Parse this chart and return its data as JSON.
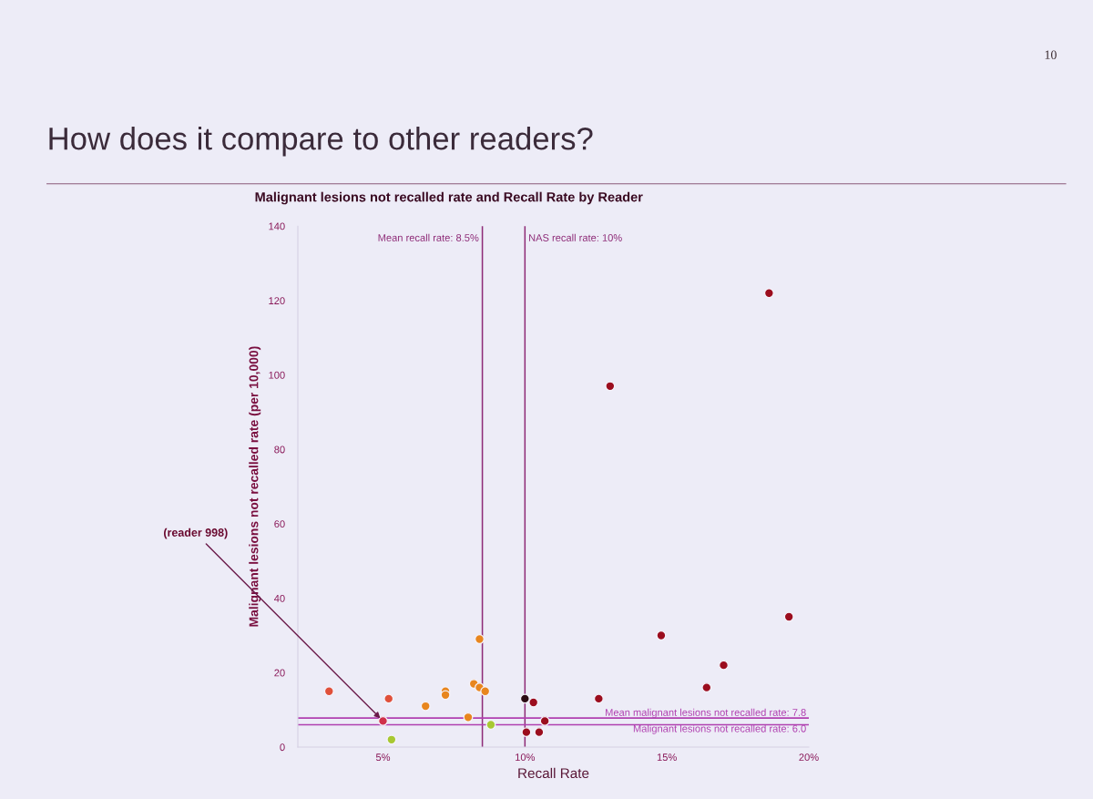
{
  "chart_data": {
    "type": "scatter",
    "title": "How does it compare to other readers?",
    "subtitle": "Malignant lesions not recalled rate and Recall Rate by Reader",
    "xlabel": "Recall Rate",
    "ylabel": "Malignant lesions not recalled rate (per 10,000)",
    "xlim": [
      2,
      20
    ],
    "xticks": [
      {
        "value": 5,
        "label": "5%"
      },
      {
        "value": 10,
        "label": "10%"
      },
      {
        "value": 15,
        "label": "15%"
      },
      {
        "value": 20,
        "label": "20%"
      }
    ],
    "ylim": [
      0,
      140
    ],
    "yticks": [
      0,
      20,
      40,
      60,
      80,
      100,
      120,
      140
    ],
    "marker": "circle",
    "series": [
      {
        "x": [
          3.1,
          5.2,
          5.0,
          5.3,
          6.5,
          7.2,
          7.2,
          8.0,
          8.4,
          8.2,
          8.4,
          8.6,
          8.8,
          10.0,
          10.3,
          10.05,
          10.5,
          10.7,
          12.6,
          13.0,
          14.8,
          16.4,
          17.0,
          18.6,
          19.3
        ],
        "values": [
          15,
          13,
          7,
          2,
          11,
          15,
          14,
          8,
          29,
          17,
          16,
          15,
          6,
          13,
          12,
          4,
          4,
          7,
          13,
          97,
          30,
          16,
          22,
          122,
          35
        ],
        "colors": [
          "#e0503a",
          "#e0503a",
          "#d0304a",
          "#a8c832",
          "#e8861e",
          "#e8861e",
          "#e8861e",
          "#e8861e",
          "#e8861e",
          "#e8861e",
          "#e8861e",
          "#e8861e",
          "#a8c832",
          "#2b0b12",
          "#9b0d1e",
          "#9b0d1e",
          "#9b0d1e",
          "#9b0d1e",
          "#9b0d1e",
          "#9b0d1e",
          "#9b0d1e",
          "#9b0d1e",
          "#9b0d1e",
          "#9b0d1e",
          "#9b0d1e"
        ]
      }
    ],
    "ref_lines": [
      {
        "axis": "x",
        "value": 8.5,
        "label": "Mean recall rate: 8.5%",
        "color": "#8e2c78"
      },
      {
        "axis": "x",
        "value": 10,
        "label": "NAS recall rate: 10%",
        "color": "#8e2c78"
      },
      {
        "axis": "y",
        "value": 7.8,
        "label": "Mean malignant lesions not recalled rate: 7.8",
        "color": "#b040b0"
      },
      {
        "axis": "y",
        "value": 6.0,
        "label": "Malignant lesions not recalled rate: 6.0",
        "color": "#b040b0"
      }
    ],
    "annotations": [
      "10",
      {
        "text": "(reader 998)",
        "x": 5.0,
        "y": 7
      }
    ]
  }
}
